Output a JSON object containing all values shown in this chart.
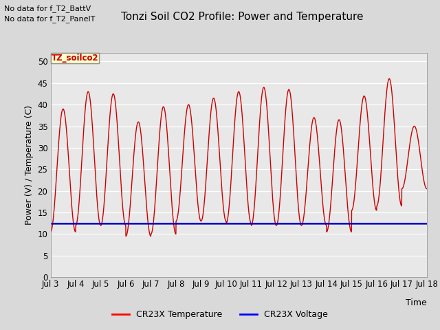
{
  "title": "Tonzi Soil CO2 Profile: Power and Temperature",
  "ylabel": "Power (V) / Temperature (C)",
  "xlabel": "Time",
  "top_left_text_line1": "No data for f_T2_BattV",
  "top_left_text_line2": "No data for f_T2_PanelT",
  "legend_label_text": "TZ_soilco2",
  "legend_labels": [
    "CR23X Temperature",
    "CR23X Voltage"
  ],
  "legend_colors": [
    "#ff0000",
    "#0000ff"
  ],
  "ylim": [
    0,
    52
  ],
  "yticks": [
    0,
    5,
    10,
    15,
    20,
    25,
    30,
    35,
    40,
    45,
    50
  ],
  "x_tick_labels": [
    "Jul 3",
    "Jul 4",
    "Jul 5",
    "Jul 6",
    "Jul 7",
    "Jul 8",
    "Jul 9",
    "Jul 10",
    "Jul 11",
    "Jul 12",
    "Jul 13",
    "Jul 14",
    "Jul 15",
    "Jul 16",
    "Jul 17",
    "Jul 18"
  ],
  "bg_color": "#d9d9d9",
  "plot_bg_color": "#e8e8e8",
  "temp_color": "#cc0000",
  "volt_color": "#0000cc",
  "volt_value": 12.4,
  "peak_temps": [
    39,
    43,
    42.5,
    36,
    39.5,
    40,
    41.5,
    43,
    44,
    43.5,
    37,
    36.5,
    42,
    46,
    35
  ],
  "trough_temps": [
    10.5,
    12,
    12,
    9.5,
    10,
    13,
    13,
    12.5,
    12,
    12,
    12,
    10.5,
    15.5,
    16.5,
    20.5
  ],
  "num_days": 15,
  "title_fontsize": 11,
  "label_fontsize": 9,
  "tick_fontsize": 8.5
}
